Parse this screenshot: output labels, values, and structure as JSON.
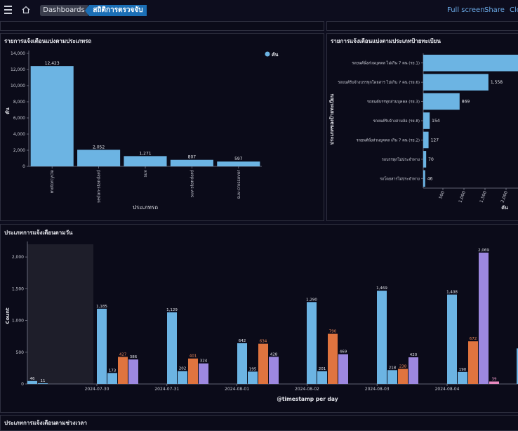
{
  "nav": {
    "breadcrumb_dashboards": "Dashboards",
    "breadcrumb_current": "สถิติการตรวจจับ",
    "full_screen": "Full screen",
    "share": "Share",
    "close": "Clo"
  },
  "colors": {
    "blue": "#6cb4e3",
    "orange": "#e0743f",
    "purple": "#9d88e0",
    "pink": "#e98ac0"
  },
  "panels": {
    "by_type_title": "รายการแจ้งเตือนแบ่งตามประเภทรถ",
    "by_plate_title": "รายการแจ้งเตือนแบ่งตามประเภทป้ายทะเบียน",
    "by_day_title": "ประเภทการแจ้งเตือนตามวัน",
    "by_time_title": "ประเภทการแจ้งเตือนตามช่วงเวลา"
  },
  "chart_data": [
    {
      "type": "bar",
      "categories": [
        "motorcycle",
        "sedan-standard",
        "suv",
        "suv-standard",
        "suv-crossover"
      ],
      "values": [
        12423,
        2052,
        1271,
        807,
        597
      ],
      "ylabel": "คัน",
      "xlabel": "ประเภทรถ",
      "ylim": [
        0,
        14000
      ],
      "yticks": [
        0,
        2000,
        4000,
        6000,
        8000,
        10000,
        12000,
        14000
      ],
      "legend": {
        "name": "คัน",
        "position": "top-right"
      }
    },
    {
      "type": "bar",
      "orientation": "horizontal",
      "categories": [
        "รถยนต์นั่งส่วนบุคคล ไม่เกิน 7 คน (รย.1)",
        "รถยนต์รับจ้างบรรทุกโดยสาร ไม่เกิน 7 คน (รย.6)",
        "รถยนต์บรรทุกส่วนบุคคล (รย.3)",
        "รถยนต์รับจ้างสามล้อ (รย.8)",
        "รถยนต์นั่งส่วนบุคคล เกิน 7 คน (รย.2)",
        "รถบรรทุกไม่ประจำทาง",
        "รถโดยสารไม่ประจำทาง"
      ],
      "values": [
        null,
        1558,
        869,
        154,
        127,
        70,
        46
      ],
      "ylabel": "ประเภทของป้ายทะเบียน",
      "xlabel": "คัน",
      "xticks": [
        "500",
        "1,000",
        "1,500",
        "2,000"
      ]
    },
    {
      "type": "bar",
      "categories": [
        "2024-07-30",
        "2024-07-31",
        "2024-08-01",
        "2024-08-02",
        "2024-08-03",
        "2024-08-04"
      ],
      "xlabel": "@timestamp per day",
      "ylabel": "Count",
      "ylim": [
        0,
        2200
      ],
      "yticks": [
        "0",
        "500",
        "1,000",
        "1,500",
        "2,000"
      ],
      "groups": [
        {
          "bars": [
            {
              "value": 46,
              "color": "blue"
            },
            {
              "value": 11,
              "color": "blue"
            }
          ]
        },
        {
          "bars": [
            {
              "value": 1185,
              "color": "blue"
            },
            {
              "value": 173,
              "color": "blue"
            },
            {
              "value": 427,
              "color": "orange"
            },
            {
              "value": 386,
              "color": "purple"
            }
          ]
        },
        {
          "bars": [
            {
              "value": 1129,
              "color": "blue"
            },
            {
              "value": 202,
              "color": "blue"
            },
            {
              "value": 401,
              "color": "orange"
            },
            {
              "value": 324,
              "color": "purple"
            }
          ]
        },
        {
          "bars": [
            {
              "value": 642,
              "color": "blue"
            },
            {
              "value": 195,
              "color": "blue"
            },
            {
              "value": 634,
              "color": "orange"
            },
            {
              "value": 428,
              "color": "purple"
            }
          ]
        },
        {
          "bars": [
            {
              "value": 1290,
              "color": "blue"
            },
            {
              "value": 201,
              "color": "blue"
            },
            {
              "value": 790,
              "color": "orange"
            },
            {
              "value": 469,
              "color": "purple"
            }
          ]
        },
        {
          "bars": [
            {
              "value": 1469,
              "color": "blue"
            },
            {
              "value": 218,
              "color": "blue"
            },
            {
              "value": 238,
              "color": "orange"
            },
            {
              "value": 420,
              "color": "purple"
            }
          ]
        },
        {
          "bars": [
            {
              "value": 1408,
              "color": "blue"
            },
            {
              "value": 190,
              "color": "blue"
            },
            {
              "value": 672,
              "color": "orange"
            },
            {
              "value": 2069,
              "color": "purple"
            },
            {
              "value": 39,
              "color": "pink"
            }
          ]
        },
        {
          "bars": [
            {
              "value": null,
              "color": "blue"
            }
          ]
        }
      ]
    }
  ]
}
